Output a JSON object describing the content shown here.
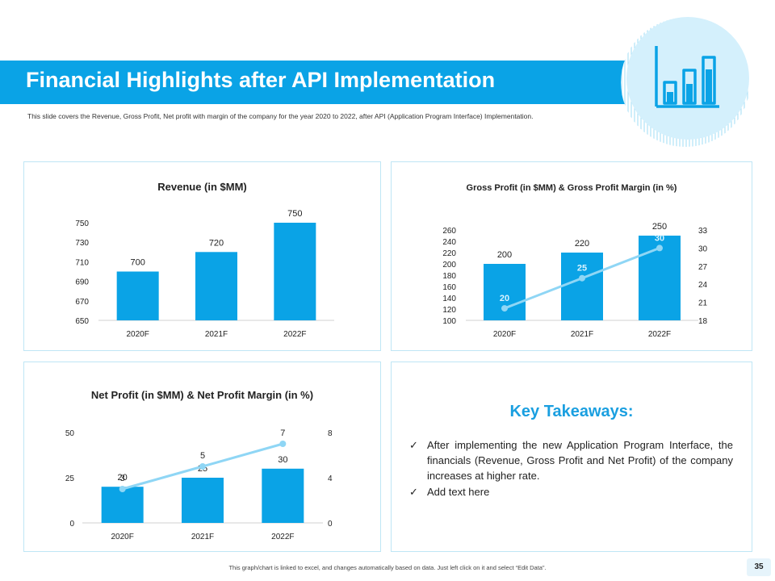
{
  "slide": {
    "title": "Financial Highlights after API Implementation",
    "subtitle": "This slide covers the Revenue, Gross Profit, Net profit with margin of the company for the year 2020 to 2022, after API (Application Program Interface) Implementation.",
    "footer_note": "This graph/chart is linked to excel, and changes automatically based on data. Just left click on it and select “Edit Data”.",
    "page_number": "35",
    "header_icon": "bar-chart-icon",
    "colors": {
      "accent": "#0aa3e6",
      "bar": "#0aa3e6",
      "line": "#8fd6f5",
      "circle": "#d4f0fc"
    }
  },
  "takeaways": {
    "title": "Key Takeaways:",
    "items": [
      "After implementing the new Application Program Interface, the financials (Revenue, Gross Profit and Net Profit) of the company increases at higher rate.",
      "Add text here"
    ]
  },
  "chart_data": [
    {
      "type": "bar",
      "title": "Revenue (in $MM)",
      "categories": [
        "2020F",
        "2021F",
        "2022F"
      ],
      "values": [
        700,
        720,
        750
      ],
      "ylim": [
        650,
        750
      ],
      "yticks": [
        650,
        670,
        690,
        710,
        730,
        750
      ],
      "grid": false,
      "xlabel": "",
      "ylabel": ""
    },
    {
      "type": "bar",
      "title": "Gross Profit (in $MM) & Gross Profit Margin (in %)",
      "categories": [
        "2020F",
        "2021F",
        "2022F"
      ],
      "series": [
        {
          "type": "bar",
          "values": [
            200,
            220,
            250
          ]
        },
        {
          "type": "line",
          "axis": "secondary",
          "values": [
            20,
            25,
            30
          ]
        }
      ],
      "ylim": [
        100,
        260
      ],
      "yticks": [
        100,
        120,
        140,
        160,
        180,
        200,
        220,
        240,
        260
      ],
      "y2lim": [
        18,
        33
      ],
      "y2ticks": [
        18,
        21,
        24,
        27,
        30,
        33
      ],
      "grid": false
    },
    {
      "type": "bar",
      "title": "Net Profit (in $MM) & Net Profit Margin (in %)",
      "categories": [
        "2020F",
        "2021F",
        "2022F"
      ],
      "series": [
        {
          "type": "bar",
          "values": [
            20,
            25,
            30
          ]
        },
        {
          "type": "line",
          "axis": "secondary",
          "values": [
            3,
            5,
            7
          ]
        }
      ],
      "ylim": [
        0,
        50
      ],
      "yticks": [
        0,
        25,
        50
      ],
      "y2lim": [
        0,
        8
      ],
      "y2ticks": [
        0,
        4,
        8
      ],
      "grid": false
    }
  ]
}
